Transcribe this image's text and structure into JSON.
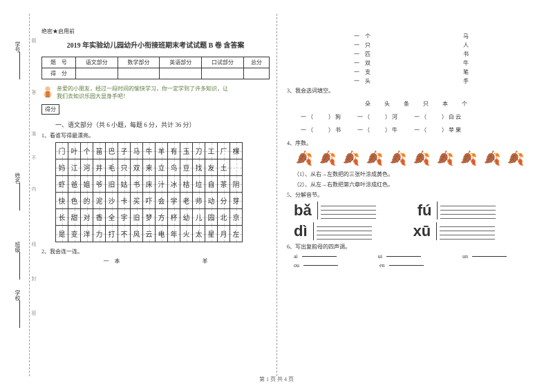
{
  "side": {
    "label1": "学号",
    "label2": "姓名",
    "label3": "学校",
    "tip1": "题",
    "tip2": "答",
    "tip3": "准",
    "tip4": "内",
    "tip5": "线",
    "tip6": "封",
    "tip7": "密",
    "class": "班级",
    "bu": "不"
  },
  "header": {
    "confidential": "绝密★启用前",
    "title": "2019 年实验幼儿园幼升小衔接班期末考试试题 B 卷 含答案"
  },
  "scoreTable": {
    "r1": [
      "题　号",
      "语文部分",
      "数学部分",
      "英语部分",
      "口试部分",
      "总分"
    ],
    "r2": [
      "得　分",
      "",
      "",
      "",
      "",
      ""
    ]
  },
  "intro": {
    "line1": "亲爱的小朋友，经过一段时间的愉快学习，你一定学到了许多知识，让",
    "line2": "我们去知识乐园大显身手吧！",
    "scoreBox": "得分"
  },
  "section1": {
    "title": "一、语文部分（共 6 小题，每题 6 分，共计 36 分）",
    "q1": "1、看谁写得最漂亮。"
  },
  "grid": {
    "rows": [
      [
        "门",
        "叶",
        "个",
        "苗",
        "巴",
        "子",
        "马",
        "牛",
        "羊",
        "有",
        "玉",
        "刀",
        "工",
        "厂",
        "棵"
      ],
      [
        "妈",
        "江",
        "河",
        "井",
        "毛",
        "只",
        "双",
        "来",
        "立",
        "鸟",
        "豆",
        "找",
        "友",
        "土",
        ""
      ],
      [
        "虾",
        "爸",
        "姐",
        "爷",
        "旧",
        "姑",
        "书",
        "床",
        "汁",
        "冰",
        "桔",
        "垃",
        "自",
        "茶",
        "阴"
      ],
      [
        "快",
        "色",
        "的",
        "泥",
        "沙",
        "卡",
        "买",
        "吓",
        "会",
        "学",
        "老",
        "师",
        "动",
        "分",
        "芽"
      ],
      [
        "长",
        "甜",
        "对",
        "香",
        "全",
        "宇",
        "旧",
        "梦",
        "方",
        "杯",
        "幼",
        "儿",
        "园",
        "北",
        "京"
      ],
      [
        "是",
        "变",
        "洋",
        "力",
        "打",
        "不",
        "风",
        "云",
        "电",
        "年",
        "火",
        "太",
        "星",
        "月",
        "左"
      ]
    ]
  },
  "q2": {
    "label": "2、我会连一连。",
    "leftCol": [
      "一　本",
      "一　个",
      "一　只",
      "一　匹",
      "一　双",
      "一　支",
      "一　头"
    ],
    "rightCol": [
      "羊",
      "马",
      "人",
      "书",
      "牛",
      "笔",
      "手"
    ]
  },
  "q3": {
    "label": "3、我会选词填空。",
    "words": "朵　头　条　只　本　个",
    "line1a": "一（　　）狗",
    "line1b": "一（　　）河",
    "line1c": "一（　　）白云",
    "line2a": "一（　　）书",
    "line2b": "一（　　）牛",
    "line2c": "一（　　）苹果"
  },
  "q4": {
    "label": "4、序数。",
    "sub1": "（1）、从右→左数把的三张叶涂成黄色。",
    "sub2": "（2）、从左→右数把第六章叶涂成红色。"
  },
  "q5": {
    "label": "5、分解音节。",
    "p1": "bǎ",
    "p2": "fú",
    "p3": "dì",
    "p4": "xū"
  },
  "q6": {
    "label": "6、写出复韵母的四声调。",
    "items": [
      "ai",
      "ui",
      "ou",
      "en"
    ],
    "un": "un"
  },
  "footer": "第 1 页 共 4 页"
}
